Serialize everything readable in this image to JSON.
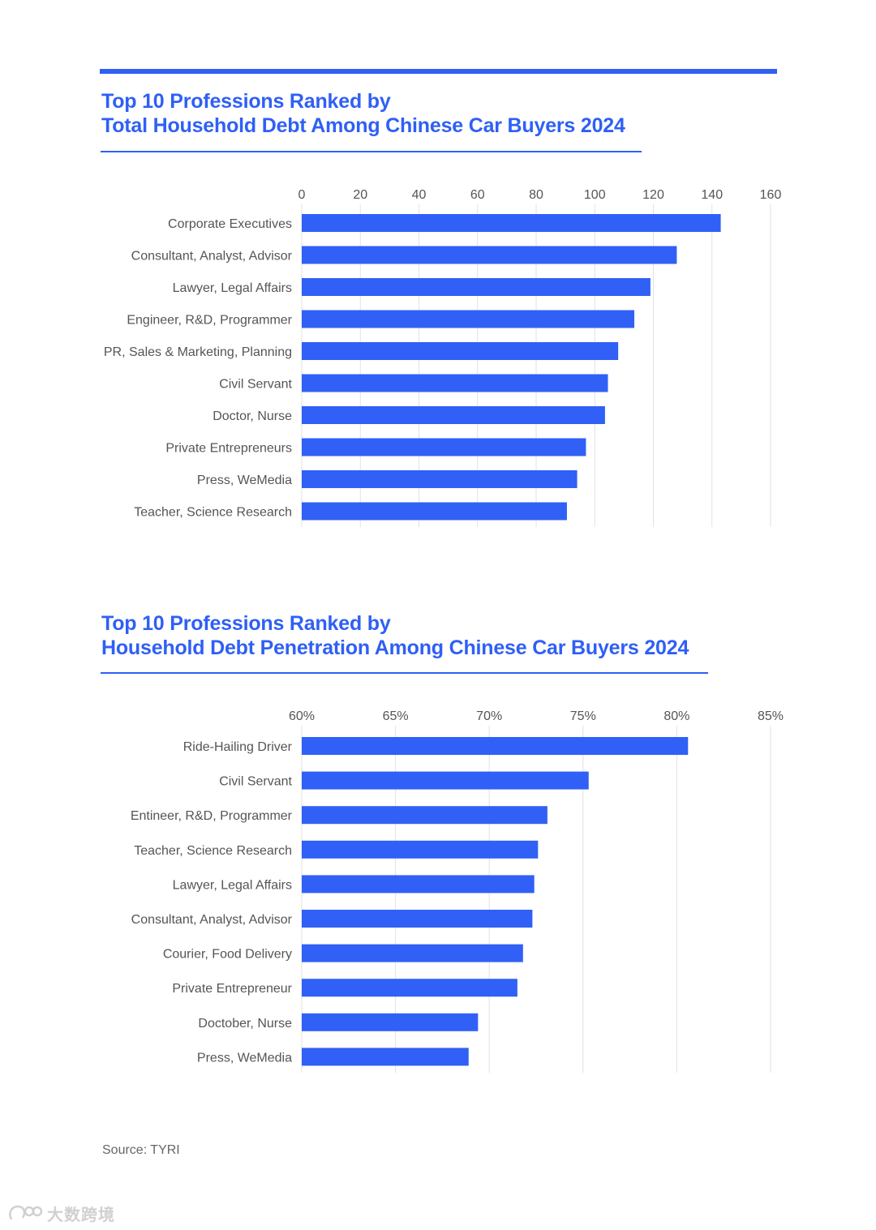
{
  "colors": {
    "accent": "#2f5ff5",
    "bar": "#3060f6",
    "title": "#2f5ff5"
  },
  "chart_data": [
    {
      "type": "bar",
      "orientation": "horizontal",
      "title_lines": [
        "Top 10 Professions Ranked by",
        "Total Household Debt Among Chinese Car Buyers 2024"
      ],
      "categories": [
        "Corporate Executives",
        "Consultant, Analyst, Advisor",
        "Lawyer, Legal Affairs",
        "Engineer, R&D, Programmer",
        "PR, Sales & Marketing, Planning",
        "Civil Servant",
        "Doctor, Nurse",
        "Private Entrepreneurs",
        "Press, WeMedia",
        "Teacher, Science Research"
      ],
      "values": [
        143,
        128,
        119,
        113.5,
        108,
        104.5,
        103.5,
        97,
        94,
        90.5
      ],
      "xlim": [
        0,
        160
      ],
      "ticks": [
        "0",
        "20",
        "40",
        "60",
        "80",
        "100",
        "120",
        "140",
        "160"
      ],
      "tick_values": [
        0,
        20,
        40,
        60,
        80,
        100,
        120,
        140,
        160
      ],
      "grid": true
    },
    {
      "type": "bar",
      "orientation": "horizontal",
      "title_lines": [
        "Top 10 Professions Ranked by",
        "Household Debt Penetration Among Chinese Car Buyers 2024"
      ],
      "categories": [
        "Ride-Hailing Driver",
        "Civil Servant",
        "Entineer, R&D, Programmer",
        "Teacher, Science Research",
        "Lawyer, Legal Affairs",
        "Consultant, Analyst, Advisor",
        "Courier, Food Delivery",
        "Private Entrepreneur",
        "Doctober, Nurse",
        "Press, WeMedia"
      ],
      "values": [
        80.6,
        75.3,
        73.1,
        72.6,
        72.4,
        72.3,
        71.8,
        71.5,
        69.4,
        68.9
      ],
      "xlim": [
        60,
        85
      ],
      "ticks": [
        "60%",
        "65%",
        "70%",
        "75%",
        "80%",
        "85%"
      ],
      "tick_values": [
        60,
        65,
        70,
        75,
        80,
        85
      ],
      "grid": true
    }
  ],
  "source": "Source: TYRI",
  "watermark": "大数跨境"
}
